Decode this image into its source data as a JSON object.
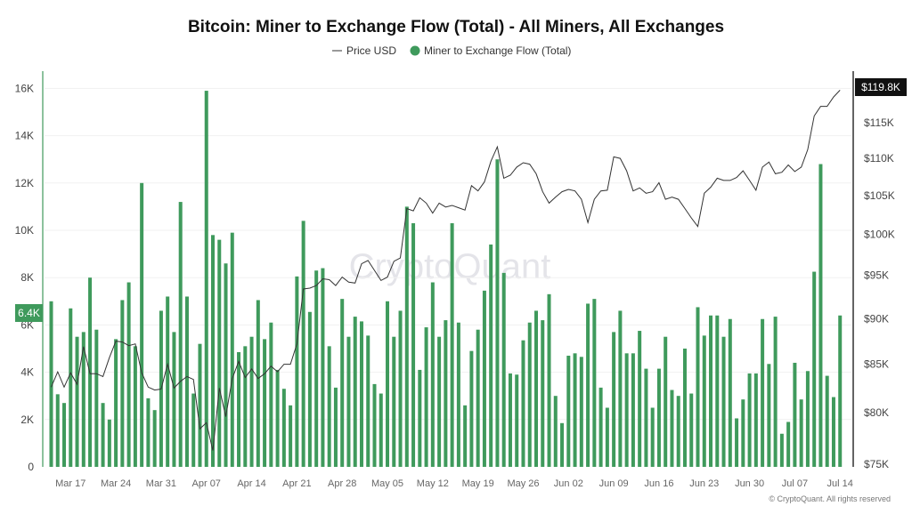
{
  "chart_data": {
    "type": "bar",
    "title": "Bitcoin: Miner to Exchange Flow (Total) - All Miners, All Exchanges",
    "legend": [
      {
        "name": "Price USD",
        "kind": "line",
        "color": "#333333"
      },
      {
        "name": "Miner to Exchange Flow (Total)",
        "kind": "bar",
        "color": "#3f9a5c"
      }
    ],
    "legend_position": "top-center",
    "date_range": [
      "2025-03-14",
      "2025-07-14"
    ],
    "x_tick_labels": [
      "Mar 17",
      "Mar 24",
      "Mar 31",
      "Apr 07",
      "Apr 14",
      "Apr 21",
      "Apr 28",
      "May 05",
      "May 12",
      "May 19",
      "May 26",
      "Jun 02",
      "Jun 09",
      "Jun 16",
      "Jun 23",
      "Jun 30",
      "Jul 07",
      "Jul 14"
    ],
    "left_axis": {
      "ticks": [
        "0",
        "2K",
        "4K",
        "6K",
        "8K",
        "10K",
        "12K",
        "14K",
        "16K"
      ],
      "range_k": [
        0,
        16.5
      ],
      "current_badge": "6.4K"
    },
    "right_axis": {
      "scale": "log",
      "ticks": [
        "$75K",
        "$80K",
        "$85K",
        "$90K",
        "$95K",
        "$100K",
        "$105K",
        "$110K",
        "$115K"
      ],
      "tick_values_k": [
        75,
        80,
        85,
        90,
        95,
        100,
        105,
        110,
        115
      ],
      "current_badge": "$119.8K"
    },
    "series": [
      {
        "name": "Miner to Exchange Flow (Total)",
        "unit": "K BTC",
        "values": [
          7.0,
          3.07,
          2.7,
          6.7,
          5.5,
          5.7,
          8.0,
          5.8,
          2.7,
          2.0,
          5.4,
          7.05,
          7.8,
          5.1,
          12.0,
          2.9,
          2.4,
          6.6,
          7.2,
          5.7,
          11.2,
          7.2,
          3.1,
          5.2,
          15.9,
          9.8,
          9.6,
          8.6,
          9.9,
          4.85,
          5.1,
          5.5,
          7.05,
          5.4,
          6.1,
          4.1,
          3.3,
          2.6,
          8.05,
          10.4,
          6.55,
          8.3,
          8.4,
          5.1,
          3.35,
          7.1,
          5.5,
          6.35,
          6.15,
          5.55,
          3.5,
          3.1,
          7.0,
          5.5,
          6.6,
          11.0,
          10.3,
          4.1,
          5.9,
          7.8,
          5.5,
          6.2,
          10.3,
          6.1,
          2.6,
          4.9,
          5.8,
          7.45,
          9.4,
          13.0,
          8.2,
          3.95,
          3.9,
          5.35,
          6.1,
          6.6,
          6.2,
          7.3,
          3.0,
          1.85,
          4.7,
          4.8,
          4.65,
          6.9,
          7.1,
          3.35,
          2.5,
          5.7,
          6.6,
          4.8,
          4.8,
          5.75,
          4.15,
          2.5,
          4.15,
          5.5,
          3.25,
          3.0,
          5.0,
          3.1,
          6.75,
          5.55,
          6.4,
          6.4,
          5.5,
          6.25,
          2.05,
          2.85,
          3.95,
          3.95,
          6.25,
          4.35,
          6.35,
          1.4,
          1.9,
          4.4,
          2.85,
          4.05,
          8.25,
          12.8,
          3.85,
          2.95,
          6.4
        ]
      },
      {
        "name": "Price USD",
        "unit": "K USD",
        "values": [
          82.6,
          84.2,
          82.6,
          84.1,
          82.9,
          86.9,
          84.0,
          84.0,
          83.7,
          85.7,
          87.5,
          87.4,
          87.0,
          87.2,
          84.1,
          82.6,
          82.3,
          82.4,
          85.0,
          82.5,
          83.2,
          83.7,
          83.4,
          78.4,
          79.0,
          76.3,
          82.5,
          79.6,
          83.5,
          85.3,
          83.6,
          84.5,
          83.5,
          84.0,
          84.8,
          84.2,
          85.0,
          85.0,
          87.2,
          93.4,
          93.5,
          93.8,
          94.6,
          94.5,
          93.8,
          94.8,
          94.2,
          94.1,
          96.4,
          96.8,
          95.6,
          94.4,
          94.8,
          96.7,
          97.1,
          103.3,
          103.0,
          104.7,
          104.0,
          102.7,
          104.0,
          103.5,
          103.7,
          103.4,
          103.1,
          106.3,
          105.6,
          106.8,
          109.6,
          111.6,
          107.3,
          107.7,
          108.8,
          109.4,
          109.2,
          107.9,
          105.5,
          104.0,
          104.8,
          105.5,
          105.8,
          105.6,
          104.5,
          101.5,
          104.5,
          105.6,
          105.7,
          110.2,
          110.0,
          108.3,
          105.6,
          106.0,
          105.3,
          105.5,
          106.7,
          104.5,
          104.8,
          104.5,
          103.3,
          102.1,
          101.0,
          105.3,
          106.1,
          107.3,
          107.0,
          107.0,
          107.4,
          108.3,
          107.0,
          105.7,
          108.8,
          109.5,
          107.9,
          108.1,
          109.1,
          108.2,
          108.8,
          111.2,
          116.0,
          117.4,
          117.4,
          118.8,
          119.8
        ]
      }
    ],
    "grid": true,
    "watermark": "CryptoQuant",
    "copyright": "© CryptoQuant. All rights reserved"
  }
}
